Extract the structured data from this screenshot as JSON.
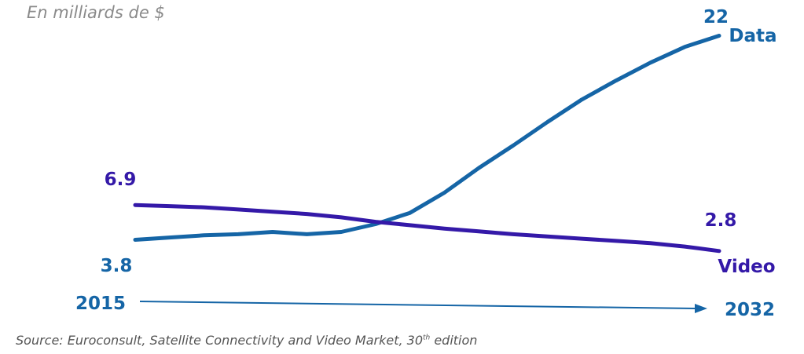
{
  "unit_note": "En milliards de $",
  "source": {
    "text_before": "Source: Euroconsult, Satellite Connectivity and Video Market, 30",
    "superscript": "th",
    "text_after": " edition"
  },
  "colors": {
    "data": "#1565a6",
    "video": "#3419a8",
    "axis": "#1565a6"
  },
  "chart_data": {
    "type": "line",
    "title": "",
    "x": [
      2015,
      2016,
      2017,
      2018,
      2019,
      2020,
      2021,
      2022,
      2023,
      2024,
      2025,
      2026,
      2027,
      2028,
      2029,
      2030,
      2031,
      2032
    ],
    "xlim": [
      2015,
      2032
    ],
    "ylim": [
      0,
      22
    ],
    "series": [
      {
        "name": "Data",
        "values": [
          3.8,
          4.0,
          4.2,
          4.3,
          4.5,
          4.3,
          4.5,
          5.2,
          6.2,
          8.0,
          10.2,
          12.2,
          14.3,
          16.3,
          18.0,
          19.6,
          21.0,
          22.0
        ],
        "start_label": "3.8",
        "end_label": "22"
      },
      {
        "name": "Video",
        "values": [
          6.9,
          6.8,
          6.7,
          6.5,
          6.3,
          6.1,
          5.8,
          5.4,
          5.1,
          4.8,
          4.55,
          4.3,
          4.1,
          3.9,
          3.7,
          3.5,
          3.2,
          2.8
        ],
        "start_label": "6.9",
        "end_label": "2.8"
      }
    ],
    "axis": {
      "start_label": "2015",
      "end_label": "2032"
    }
  }
}
